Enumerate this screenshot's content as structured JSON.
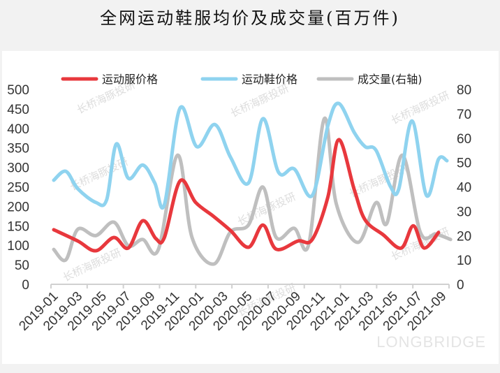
{
  "title": "全网运动鞋服均价及成交量(百万件)",
  "watermark": "长桥海豚投研",
  "brand": "LONGBRIDGE",
  "chart_data": {
    "type": "line",
    "title": "全网运动鞋服均价及成交量(百万件)",
    "xlabel": "",
    "ylabel": "",
    "y2label": "",
    "ylim": [
      0,
      500
    ],
    "y2lim": [
      0,
      80
    ],
    "yticks": [
      "0",
      "50",
      "100",
      "150",
      "200",
      "250",
      "300",
      "350",
      "400",
      "450",
      "500"
    ],
    "y2ticks": [
      "0",
      "10",
      "20",
      "30",
      "40",
      "50",
      "60",
      "70",
      "80"
    ],
    "xticks": [
      "2019-01",
      "2019-03",
      "2019-05",
      "2019-07",
      "2019-09",
      "2019-11",
      "2020-01",
      "2020-03",
      "2020-05",
      "2020-07",
      "2020-09",
      "2020-11",
      "2021-01",
      "2021-03",
      "2021-05",
      "2021-07",
      "2021-09"
    ],
    "grid": false,
    "legend_position": "top",
    "series": [
      {
        "name": "运动服价格",
        "axis": "left",
        "color": "#e8383d",
        "x": [
          0,
          2,
          3.5,
          5,
          6.2,
          7.4,
          8.5,
          9.2,
          10.5,
          11.8,
          13.3,
          14.7,
          16.2,
          17.4,
          18.5,
          20.3,
          21.5,
          22.8,
          23.7,
          25,
          25.9,
          27.4,
          28.9,
          29.9,
          30.8,
          32
        ],
        "values": [
          140,
          111,
          86,
          120,
          93,
          163,
          117,
          120,
          265,
          210,
          174,
          138,
          95,
          152,
          90,
          111,
          115,
          224,
          371,
          242,
          165,
          127,
          93,
          150,
          93,
          133
        ]
      },
      {
        "name": "运动鞋价格",
        "axis": "left",
        "color": "#8fd3ef",
        "x": [
          0,
          1,
          2,
          3.5,
          4.4,
          5.2,
          6.2,
          7.4,
          8.4,
          9.2,
          10.5,
          11.9,
          13.4,
          14.7,
          16.2,
          17.4,
          18.7,
          20,
          21.5,
          22.8,
          23.7,
          25,
          25.9,
          26.8,
          28,
          28.7,
          29.8,
          31,
          32,
          32.7
        ],
        "values": [
          267,
          290,
          245,
          210,
          217,
          360,
          272,
          306,
          260,
          204,
          452,
          353,
          410,
          326,
          260,
          425,
          287,
          296,
          228,
          407,
          464,
          389,
          353,
          344,
          251,
          245,
          419,
          228,
          321,
          317
        ]
      },
      {
        "name": "成交量(右轴)",
        "axis": "right",
        "color": "#bfbfbf",
        "x": [
          0,
          1,
          2,
          3.5,
          5,
          6.2,
          7.4,
          8.7,
          10.3,
          11.5,
          13.3,
          14.7,
          16.2,
          17.4,
          18.5,
          20,
          21.2,
          22.5,
          23.5,
          25.3,
          26.8,
          27.7,
          29,
          30.5,
          31.8,
          33
        ],
        "values": [
          14.3,
          10,
          22.6,
          20,
          25.5,
          15.8,
          18.4,
          14.3,
          53,
          19.2,
          8.3,
          21.5,
          24.4,
          39.9,
          19.2,
          23,
          16.3,
          68,
          33,
          17.2,
          33.5,
          25,
          53,
          21.2,
          20.6,
          18.4
        ]
      }
    ]
  }
}
